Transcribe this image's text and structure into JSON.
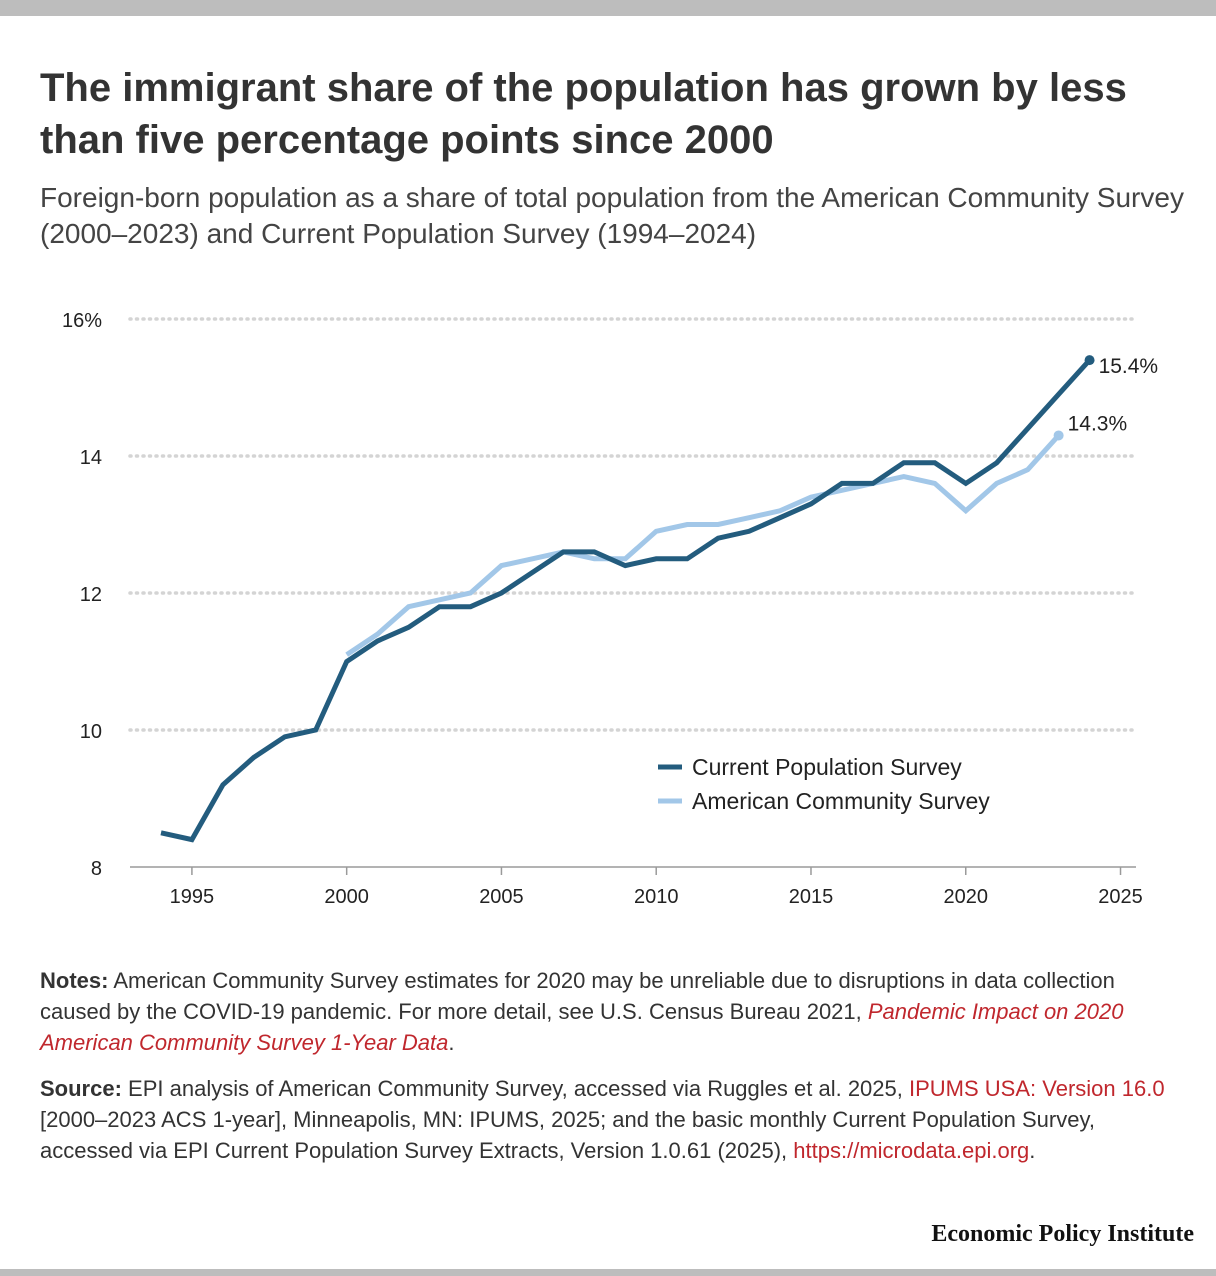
{
  "title": "The immigrant share of the population has grown by less than five percentage points since 2000",
  "subtitle": "Foreign-born population as a share of total population from the American Community Survey (2000–2023) and Current Population Survey (1994–2024)",
  "chart_data": {
    "type": "line",
    "x_ticks": [
      "1995",
      "2000",
      "2005",
      "2010",
      "2015",
      "2020",
      "2025"
    ],
    "y_ticks": [
      "16%",
      "14",
      "12",
      "10",
      "8"
    ],
    "y_tick_values": [
      16,
      14,
      12,
      10,
      8
    ],
    "xlim": [
      1993,
      2025.5
    ],
    "ylim": [
      8,
      16
    ],
    "grid": true,
    "legend_position": "bottom-right",
    "series": [
      {
        "name": "Current Population Survey",
        "color": "#235c7e",
        "x": [
          1994,
          1995,
          1996,
          1997,
          1998,
          1999,
          2000,
          2001,
          2002,
          2003,
          2004,
          2005,
          2006,
          2007,
          2008,
          2009,
          2010,
          2011,
          2012,
          2013,
          2014,
          2015,
          2016,
          2017,
          2018,
          2019,
          2020,
          2021,
          2022,
          2023,
          2024
        ],
        "values": [
          8.5,
          8.4,
          9.2,
          9.6,
          9.9,
          10.0,
          11.0,
          11.3,
          11.5,
          11.8,
          11.8,
          12.0,
          12.3,
          12.6,
          12.6,
          12.4,
          12.5,
          12.5,
          12.8,
          12.9,
          13.1,
          13.3,
          13.6,
          13.6,
          13.9,
          13.9,
          13.6,
          13.9,
          14.4,
          14.9,
          15.4
        ],
        "end_label": "15.4%"
      },
      {
        "name": "American Community Survey",
        "color": "#a2c7e8",
        "x": [
          2000,
          2001,
          2002,
          2003,
          2004,
          2005,
          2006,
          2007,
          2008,
          2009,
          2010,
          2011,
          2012,
          2013,
          2014,
          2015,
          2016,
          2017,
          2018,
          2019,
          2020,
          2021,
          2022,
          2023
        ],
        "values": [
          11.1,
          11.4,
          11.8,
          11.9,
          12.0,
          12.4,
          12.5,
          12.6,
          12.5,
          12.5,
          12.9,
          13.0,
          13.0,
          13.1,
          13.2,
          13.4,
          13.5,
          13.6,
          13.7,
          13.6,
          13.2,
          13.6,
          13.8,
          14.3
        ],
        "end_label": "14.3%"
      }
    ]
  },
  "notes": {
    "label": "Notes:",
    "text": " American Community Survey estimates for 2020 may be unreliable due to disruptions in data collection caused by the COVID-19 pandemic. For more detail, see U.S. Census Bureau 2021, ",
    "link": "Pandemic Impact on 2020 American Community Survey 1-Year Data",
    "end": "."
  },
  "source": {
    "label": "Source:",
    "text1": " EPI analysis of American Community Survey, accessed via Ruggles et al. 2025, ",
    "link1": "IPUMS USA: Version 16.0",
    "text2": " [2000–2023 ACS 1-year], Minneapolis, MN: IPUMS, 2025; and the basic monthly Current Population Survey, accessed via EPI Current Population Survey Extracts, Version 1.0.61 (2025), ",
    "link2": "https://microdata.epi.org",
    "end": "."
  },
  "brand": "Economic Policy Institute"
}
